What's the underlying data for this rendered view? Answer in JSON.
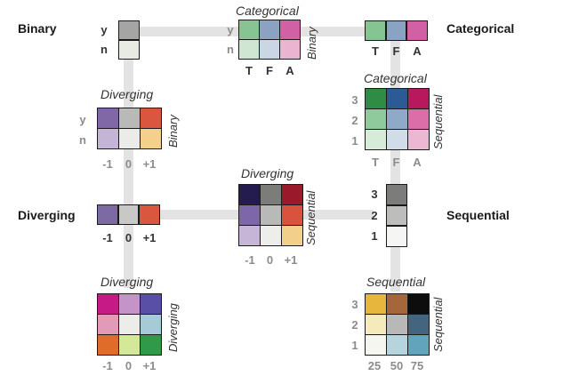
{
  "axis_labels": {
    "binary": "Binary",
    "categorical": "Categorical",
    "diverging": "Diverging",
    "sequential": "Sequential"
  },
  "ticks": {
    "binary": [
      "y",
      "n"
    ],
    "categorical": [
      "T",
      "F",
      "A"
    ],
    "diverging": [
      "-1",
      "0",
      "+1"
    ],
    "sequential": [
      "1",
      "2",
      "3"
    ],
    "sequential_numeric": [
      "25",
      "50",
      "75"
    ]
  },
  "single": {
    "binary": [
      "#a5a5a3",
      "#e8ebe4"
    ],
    "categorical": [
      "#86c593",
      "#8ba3c2",
      "#d160a4"
    ],
    "diverging": [
      "#7d6aa5",
      "#c8c8c6",
      "#d9563f"
    ],
    "sequential": [
      "#7c7c7a",
      "#bdbdbb",
      "#f5f5f3"
    ]
  },
  "matrices": {
    "cat_binary": {
      "title": "Categorical",
      "side": "Binary",
      "rows": [
        [
          "#86c593",
          "#8ba3c2",
          "#d160a4"
        ],
        [
          "#cfe6d2",
          "#cbd6e4",
          "#ebb5d1"
        ]
      ]
    },
    "bin_div": {
      "title": "Diverging",
      "side": "Binary",
      "rows": [
        [
          "#7f68a5",
          "#b9b9b7",
          "#d9563f"
        ],
        [
          "#c4b5d6",
          "#ebebe9",
          "#f3d08c"
        ]
      ]
    },
    "cat_seq": {
      "title": "Categorical",
      "side": "Sequential",
      "rows": [
        [
          "#2f8c45",
          "#2b5a94",
          "#b8185e"
        ],
        [
          "#8fcb9a",
          "#8fa9c8",
          "#da6ea8"
        ],
        [
          "#d7ebd9",
          "#d0dce8",
          "#ecb7d2"
        ]
      ]
    },
    "div_seq": {
      "title": "Diverging",
      "side": "Sequential",
      "rows": [
        [
          "#241b4f",
          "#7c7c7a",
          "#9a1a2c"
        ],
        [
          "#7d67a8",
          "#b9b9b7",
          "#d8523d"
        ],
        [
          "#c7b5d7",
          "#ededeb",
          "#f3d08a"
        ]
      ]
    },
    "div_div": {
      "title": "Diverging",
      "side": "Diverging",
      "rows": [
        [
          "#c51b87",
          "#c493c7",
          "#5a4fa6"
        ],
        [
          "#e39ab6",
          "#ececea",
          "#a6cad6"
        ],
        [
          "#df6c2a",
          "#d4e89a",
          "#2f9a47"
        ]
      ]
    },
    "seq_seq": {
      "title": "Sequential",
      "side": "Sequential",
      "rows": [
        [
          "#e7b63c",
          "#a56739",
          "#0d0d0d"
        ],
        [
          "#f5eab9",
          "#b8b8b6",
          "#43657f"
        ],
        [
          "#f5f6ee",
          "#b6d4de",
          "#61a5bd"
        ]
      ]
    }
  }
}
